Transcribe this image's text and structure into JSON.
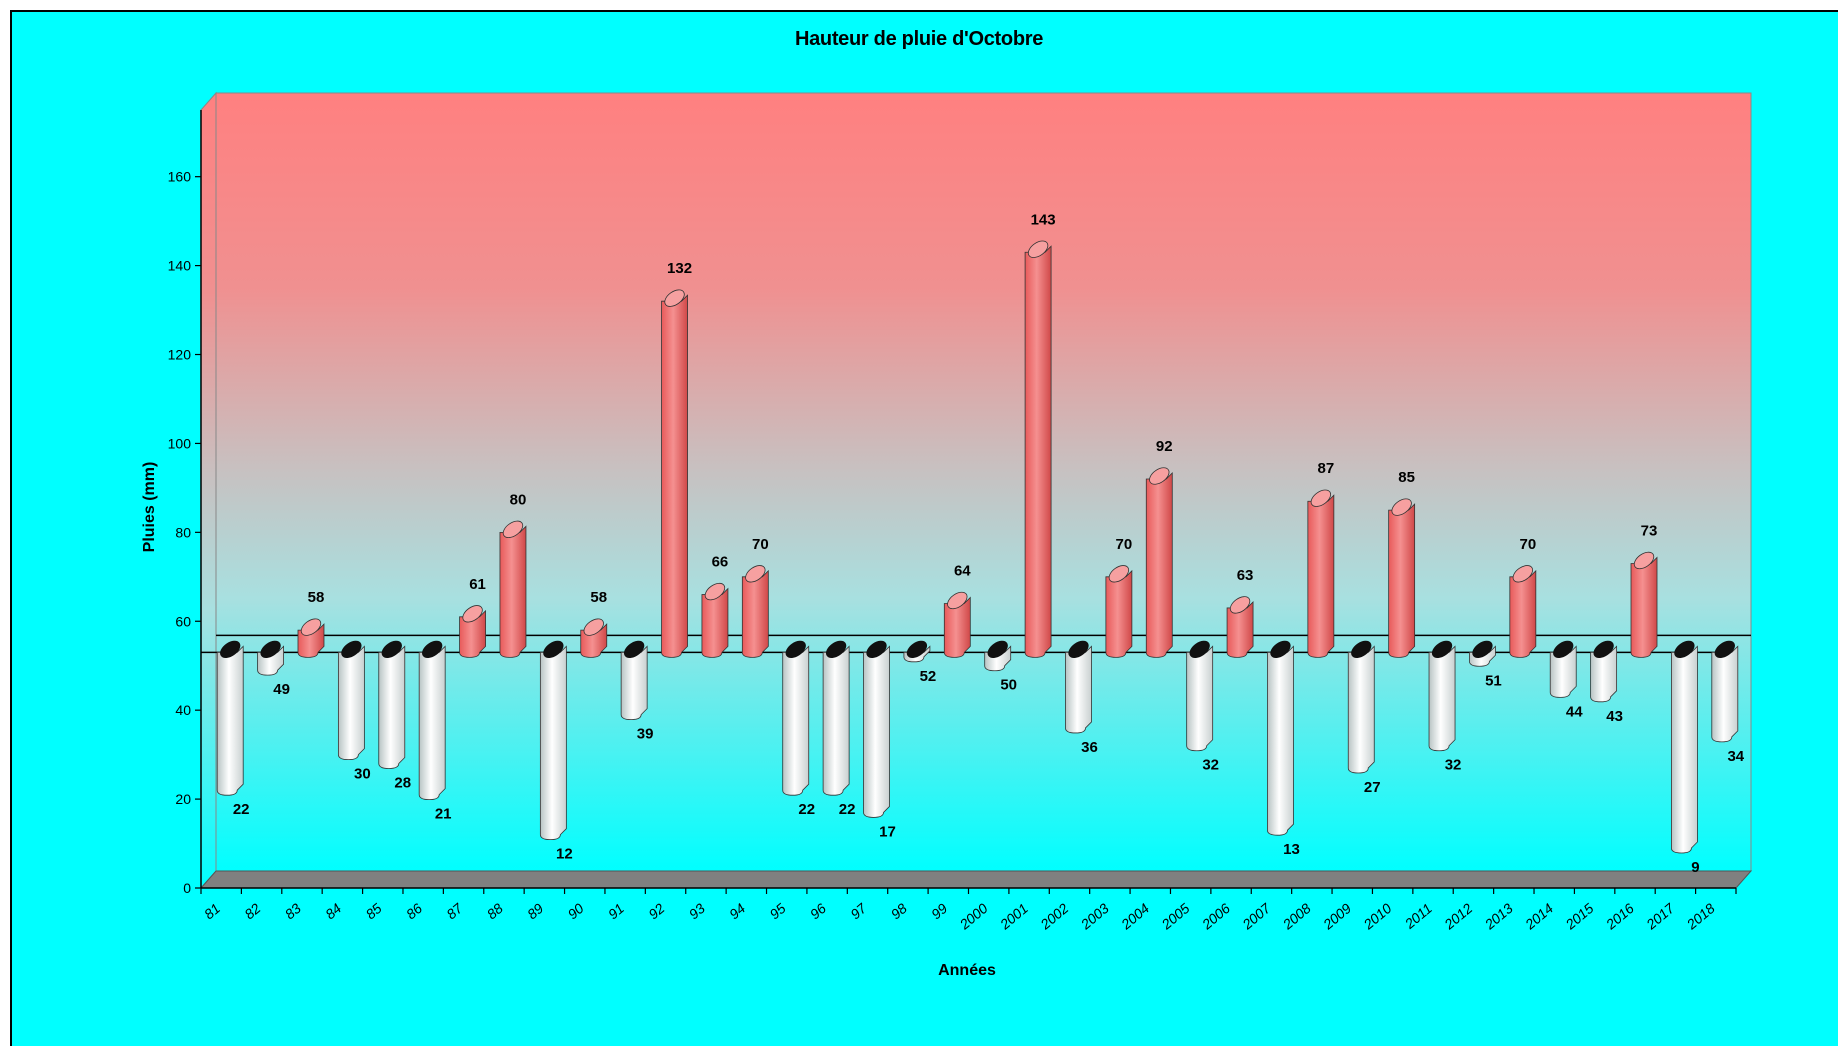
{
  "chart_data": {
    "type": "bar",
    "title": "Hauteur de pluie d'Octobre",
    "xlabel": "Années",
    "ylabel": "Pluies (mm)",
    "ylim": [
      0,
      160
    ],
    "yticks": [
      0,
      20,
      40,
      60,
      80,
      100,
      120,
      140,
      160
    ],
    "baseline": 53,
    "categories": [
      "81",
      "82",
      "83",
      "84",
      "85",
      "86",
      "87",
      "88",
      "89",
      "90",
      "91",
      "92",
      "93",
      "94",
      "95",
      "96",
      "97",
      "98",
      "99",
      "2000",
      "2001",
      "2002",
      "2003",
      "2004",
      "2005",
      "2006",
      "2007",
      "2008",
      "2009",
      "2010",
      "2011",
      "2012",
      "2013",
      "2014",
      "2015",
      "2016",
      "2017",
      "2018"
    ],
    "values": [
      22,
      49,
      58,
      30,
      28,
      21,
      61,
      80,
      12,
      58,
      39,
      132,
      66,
      70,
      22,
      22,
      17,
      52,
      64,
      50,
      143,
      36,
      70,
      92,
      32,
      63,
      13,
      87,
      27,
      85,
      32,
      51,
      70,
      44,
      43,
      73,
      9,
      34
    ],
    "colors": {
      "above": "#f07070",
      "below": "#e8ecec",
      "background": "#00ffff",
      "top_wall": "#ff8080"
    }
  }
}
